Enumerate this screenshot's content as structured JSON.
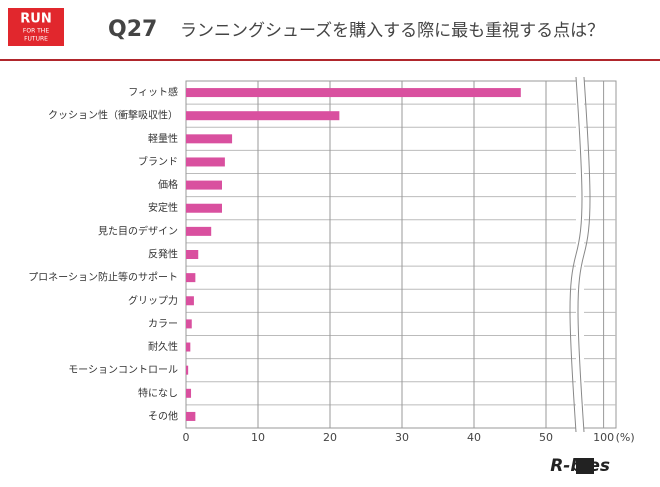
{
  "logo": [
    "RUN",
    "FOR THE",
    "FUTURE"
  ],
  "brand": "R-bies",
  "chart_data": {
    "type": "bar",
    "orientation": "horizontal",
    "title": "Q27",
    "subtitle": "ランニングシューズを購入する際に最も重視する点は？",
    "categories": [
      "フィット感",
      "クッション性（衝撃吸収性）",
      "軽量性",
      "ブランド",
      "価格",
      "安定性",
      "見た目のデザイン",
      "反発性",
      "プロネーション防止等のサポート",
      "グリップ力",
      "カラー",
      "耐久性",
      "モーションコントロール",
      "特になし",
      "その他"
    ],
    "values": [
      46.5,
      21.3,
      6.4,
      5.4,
      5.0,
      5.0,
      3.5,
      1.7,
      1.3,
      1.1,
      0.8,
      0.6,
      0.3,
      0.7,
      1.3
    ],
    "color": "#d9509f",
    "xlim": [
      0,
      100
    ],
    "xticks": [
      0,
      10,
      20,
      30,
      40,
      50,
      100
    ],
    "axis_break": [
      55,
      97
    ],
    "x_unit": "(%)",
    "grid": true
  }
}
